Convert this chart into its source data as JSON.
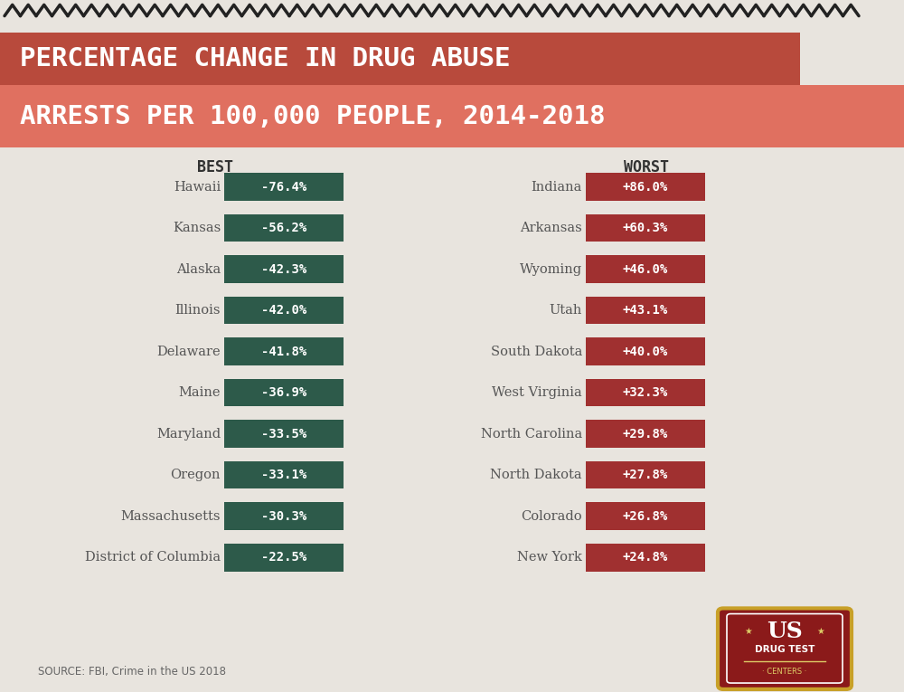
{
  "title_line1": "PERCENTAGE CHANGE IN DRUG ABUSE",
  "title_line2": "ARRESTS PER 100,000 PEOPLE, 2014-2018",
  "best_label": "BEST",
  "worst_label": "WORST",
  "best_states": [
    "Hawaii",
    "Kansas",
    "Alaska",
    "Illinois",
    "Delaware",
    "Maine",
    "Maryland",
    "Oregon",
    "Massachusetts",
    "District of Columbia"
  ],
  "best_values": [
    "-76.4%",
    "-56.2%",
    "-42.3%",
    "-42.0%",
    "-41.8%",
    "-36.9%",
    "-33.5%",
    "-33.1%",
    "-30.3%",
    "-22.5%"
  ],
  "worst_states": [
    "Indiana",
    "Arkansas",
    "Wyoming",
    "Utah",
    "South Dakota",
    "West Virginia",
    "North Carolina",
    "North Dakota",
    "Colorado",
    "New York"
  ],
  "worst_values": [
    "+86.0%",
    "+60.3%",
    "+46.0%",
    "+43.1%",
    "+40.0%",
    "+32.3%",
    "+29.8%",
    "+27.8%",
    "+26.8%",
    "+24.8%"
  ],
  "bg_color": "#e8e4de",
  "title_bg_dark": "#b84a3c",
  "title_bg_light": "#e07060",
  "best_box_color": "#2d5a4a",
  "worst_box_color": "#a03030",
  "text_color_white": "#ffffff",
  "label_color": "#555555",
  "source_text": "SOURCE: FBI, Crime in the US 2018",
  "header_color": "#333333",
  "logo_shield_color": "#8b1a1a",
  "logo_border_color": "#c8a028",
  "logo_text_color": "#ffffff",
  "logo_accent_color": "#ddcc66"
}
